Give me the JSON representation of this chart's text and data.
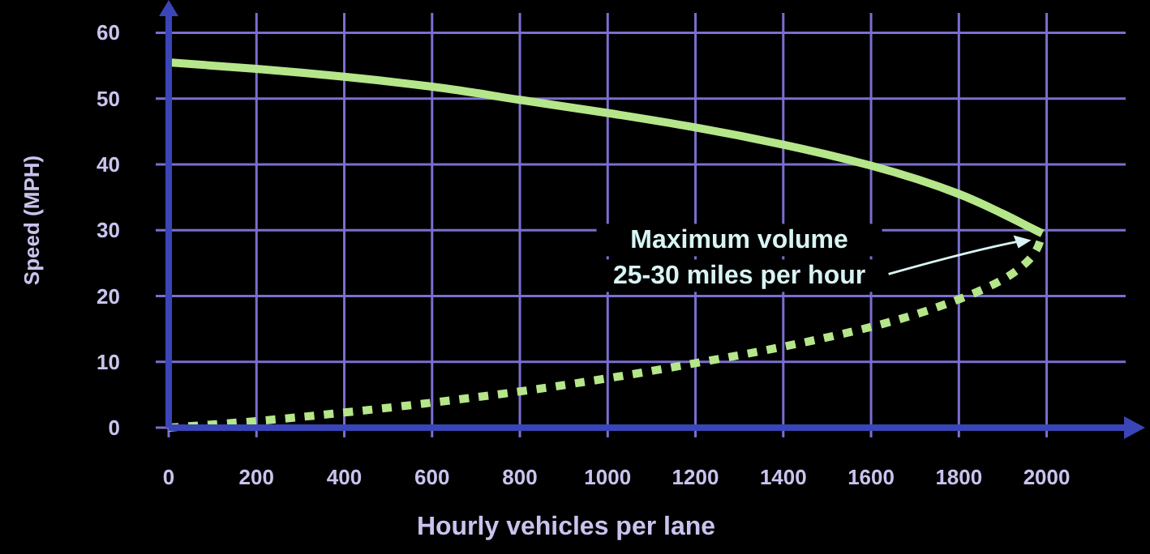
{
  "chart_data": {
    "type": "line",
    "xlabel": "Hourly vehicles per lane",
    "ylabel": "Speed (MPH)",
    "xlim": [
      0,
      2180
    ],
    "ylim": [
      0,
      63
    ],
    "xticks": [
      0,
      200,
      400,
      600,
      800,
      1000,
      1200,
      1400,
      1600,
      1800,
      2000
    ],
    "yticks": [
      0,
      10,
      20,
      30,
      40,
      50,
      60
    ],
    "grid": true,
    "marker": "none",
    "series": [
      {
        "color": "#b5e68a",
        "line_style": "solid",
        "x": [
          0,
          200,
          400,
          600,
          800,
          1000,
          1200,
          1400,
          1600,
          1800,
          1900,
          1960,
          1990
        ],
        "values": [
          55.5,
          54.5,
          53.3,
          51.8,
          49.8,
          47.8,
          45.6,
          43,
          39.8,
          35.5,
          32.5,
          30.5,
          29.5
        ]
      },
      {
        "color": "#b5e68a",
        "line_style": "dotted",
        "x": [
          0,
          200,
          400,
          600,
          800,
          1000,
          1200,
          1400,
          1600,
          1800,
          1900,
          1960,
          1990
        ],
        "values": [
          0,
          1,
          2.3,
          3.8,
          5.5,
          7.5,
          9.8,
          12.3,
          15.3,
          19.5,
          22.5,
          25.5,
          29.5
        ]
      }
    ],
    "annotations": [
      {
        "text": "Maximum volume\n25-30 miles per hour",
        "x": 1965,
        "y": 28.5
      }
    ]
  }
}
